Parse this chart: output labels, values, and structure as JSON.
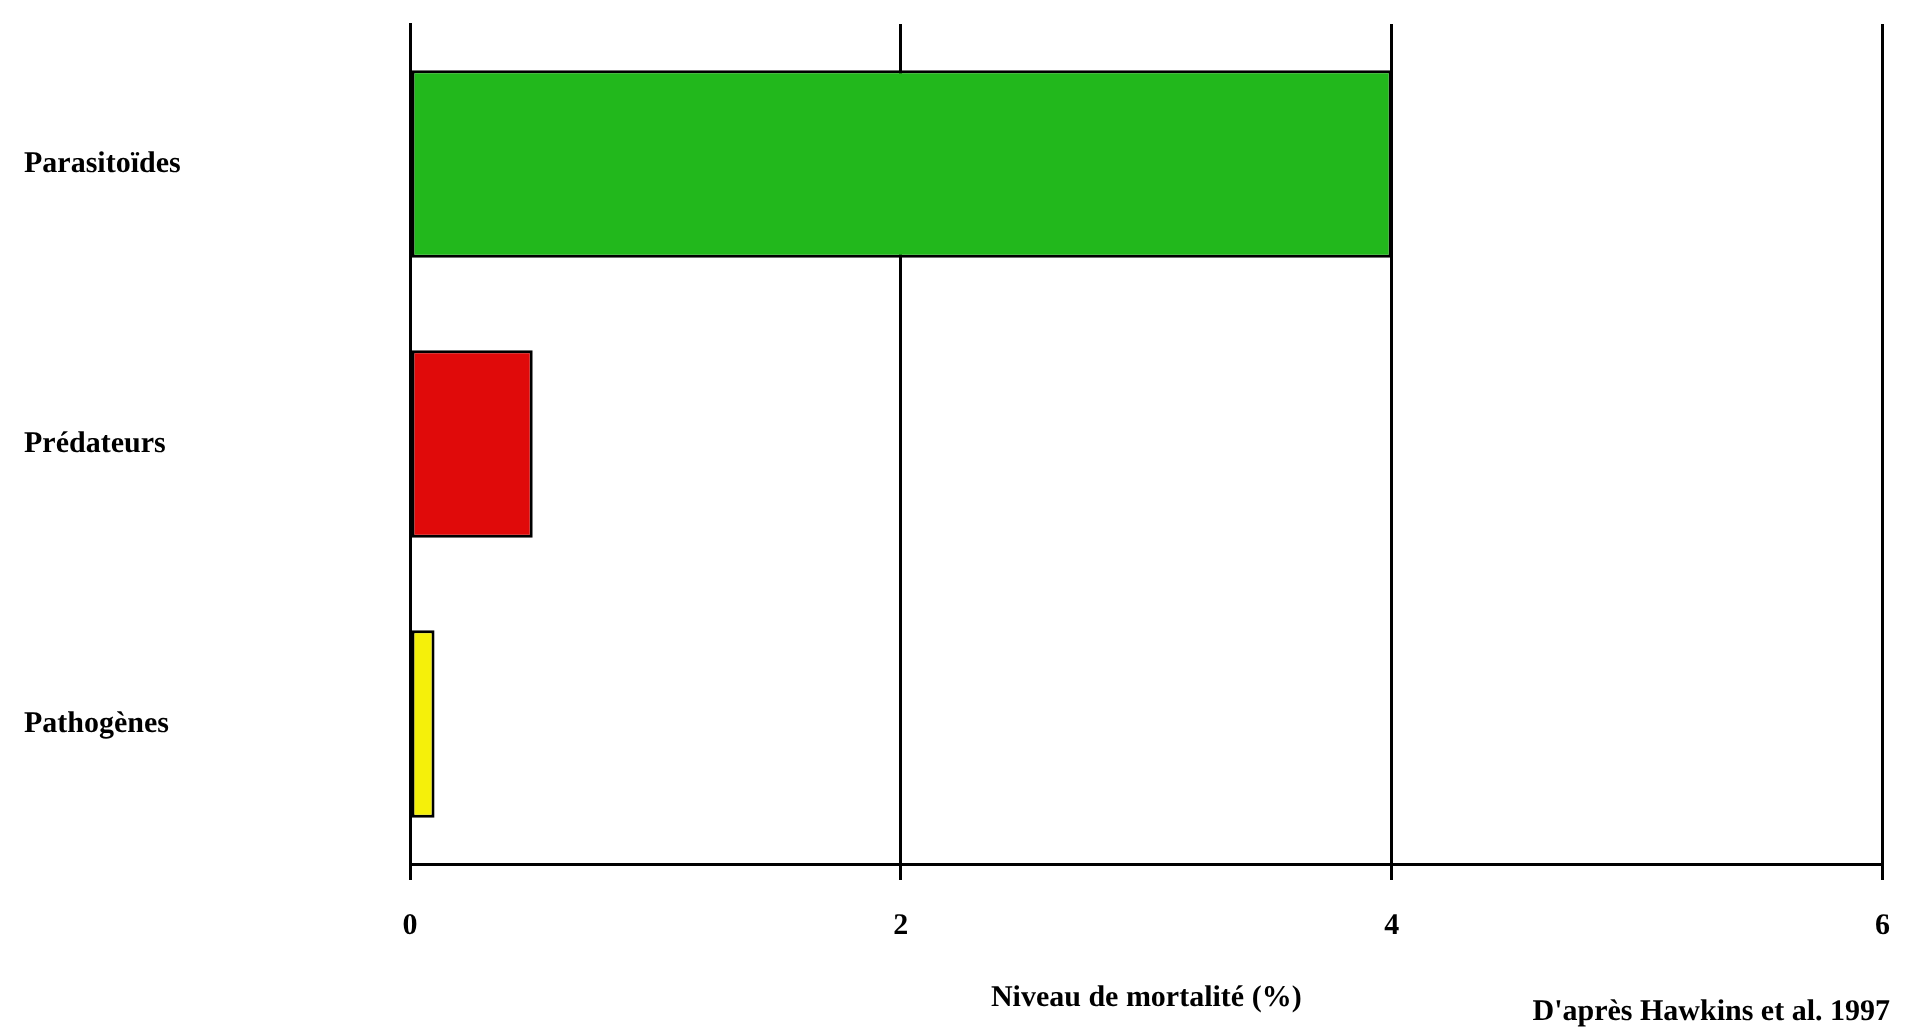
{
  "chart_data": {
    "type": "bar",
    "orientation": "horizontal",
    "categories": [
      "Parasitoïdes",
      "Prédateurs",
      "Pathogènes"
    ],
    "colors": [
      "#22b81c",
      "#e00a0a",
      "#f5f00a"
    ],
    "values": [
      4,
      0.5,
      0.1
    ],
    "xlim": [
      0,
      6
    ],
    "xticks": [
      0,
      2,
      4,
      6
    ],
    "grid": "x",
    "legend": false,
    "xlabel": "Niveau de mortalité (%)",
    "annotations": [
      "D'après Hawkins et al. 1997"
    ]
  }
}
